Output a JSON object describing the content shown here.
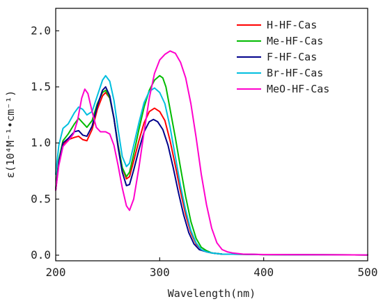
{
  "chart_data": {
    "type": "line",
    "xlabel": "Wavelength(nm)",
    "ylabel": "ε(10⁴M⁻¹•cm⁻¹)",
    "xlim": [
      200,
      500
    ],
    "ylim": [
      -0.05,
      2.2
    ],
    "x_ticks": [
      200,
      300,
      400,
      500
    ],
    "y_ticks": [
      0.0,
      0.5,
      1.0,
      1.5,
      2.0
    ],
    "x_tick_labels": [
      "200",
      "300",
      "400",
      "500"
    ],
    "y_tick_labels": [
      "0.0",
      "0.5",
      "1.0",
      "1.5",
      "2.0"
    ],
    "grid": false,
    "legend_position": "top-right",
    "series": [
      {
        "name": "H-HF-Cas",
        "color": "#ff0000",
        "points": [
          [
            200,
            0.58
          ],
          [
            203,
            0.82
          ],
          [
            207,
            0.98
          ],
          [
            212,
            1.03
          ],
          [
            218,
            1.05
          ],
          [
            222,
            1.06
          ],
          [
            226,
            1.03
          ],
          [
            230,
            1.02
          ],
          [
            235,
            1.12
          ],
          [
            240,
            1.3
          ],
          [
            245,
            1.42
          ],
          [
            248,
            1.45
          ],
          [
            252,
            1.4
          ],
          [
            256,
            1.22
          ],
          [
            260,
            0.98
          ],
          [
            264,
            0.78
          ],
          [
            268,
            0.68
          ],
          [
            271,
            0.7
          ],
          [
            275,
            0.84
          ],
          [
            280,
            1.02
          ],
          [
            285,
            1.18
          ],
          [
            290,
            1.28
          ],
          [
            295,
            1.31
          ],
          [
            300,
            1.28
          ],
          [
            305,
            1.2
          ],
          [
            310,
            1.02
          ],
          [
            315,
            0.8
          ],
          [
            320,
            0.57
          ],
          [
            325,
            0.36
          ],
          [
            330,
            0.2
          ],
          [
            335,
            0.1
          ],
          [
            340,
            0.05
          ],
          [
            345,
            0.03
          ],
          [
            350,
            0.02
          ],
          [
            360,
            0.01
          ],
          [
            380,
            0.008
          ],
          [
            400,
            0.005
          ],
          [
            500,
            0.002
          ]
        ]
      },
      {
        "name": "Me-HF-Cas",
        "color": "#00bb00",
        "points": [
          [
            200,
            0.6
          ],
          [
            203,
            0.85
          ],
          [
            207,
            1.02
          ],
          [
            212,
            1.08
          ],
          [
            218,
            1.17
          ],
          [
            222,
            1.22
          ],
          [
            226,
            1.18
          ],
          [
            230,
            1.14
          ],
          [
            235,
            1.2
          ],
          [
            240,
            1.35
          ],
          [
            245,
            1.45
          ],
          [
            248,
            1.47
          ],
          [
            252,
            1.4
          ],
          [
            256,
            1.22
          ],
          [
            260,
            0.98
          ],
          [
            264,
            0.78
          ],
          [
            268,
            0.7
          ],
          [
            271,
            0.74
          ],
          [
            275,
            0.9
          ],
          [
            280,
            1.12
          ],
          [
            285,
            1.32
          ],
          [
            290,
            1.47
          ],
          [
            295,
            1.56
          ],
          [
            300,
            1.6
          ],
          [
            303,
            1.58
          ],
          [
            306,
            1.5
          ],
          [
            310,
            1.3
          ],
          [
            315,
            1.05
          ],
          [
            320,
            0.78
          ],
          [
            325,
            0.52
          ],
          [
            330,
            0.3
          ],
          [
            335,
            0.15
          ],
          [
            340,
            0.07
          ],
          [
            345,
            0.04
          ],
          [
            350,
            0.02
          ],
          [
            360,
            0.01
          ],
          [
            380,
            0.008
          ],
          [
            400,
            0.005
          ],
          [
            500,
            0.002
          ]
        ]
      },
      {
        "name": "F-HF-Cas",
        "color": "#00008b",
        "points": [
          [
            200,
            0.58
          ],
          [
            203,
            0.83
          ],
          [
            207,
            1.0
          ],
          [
            212,
            1.04
          ],
          [
            218,
            1.1
          ],
          [
            222,
            1.11
          ],
          [
            226,
            1.07
          ],
          [
            230,
            1.06
          ],
          [
            235,
            1.15
          ],
          [
            240,
            1.33
          ],
          [
            245,
            1.47
          ],
          [
            248,
            1.5
          ],
          [
            252,
            1.42
          ],
          [
            256,
            1.22
          ],
          [
            260,
            0.96
          ],
          [
            264,
            0.74
          ],
          [
            268,
            0.62
          ],
          [
            271,
            0.63
          ],
          [
            275,
            0.76
          ],
          [
            280,
            0.94
          ],
          [
            285,
            1.1
          ],
          [
            290,
            1.19
          ],
          [
            294,
            1.21
          ],
          [
            298,
            1.19
          ],
          [
            303,
            1.12
          ],
          [
            308,
            0.98
          ],
          [
            313,
            0.78
          ],
          [
            318,
            0.56
          ],
          [
            323,
            0.36
          ],
          [
            328,
            0.2
          ],
          [
            333,
            0.1
          ],
          [
            338,
            0.05
          ],
          [
            345,
            0.03
          ],
          [
            350,
            0.02
          ],
          [
            360,
            0.01
          ],
          [
            380,
            0.008
          ],
          [
            400,
            0.005
          ],
          [
            500,
            0.002
          ]
        ]
      },
      {
        "name": "Br-HF-Cas",
        "color": "#00bfdf",
        "points": [
          [
            200,
            0.72
          ],
          [
            203,
            0.98
          ],
          [
            207,
            1.13
          ],
          [
            212,
            1.17
          ],
          [
            218,
            1.27
          ],
          [
            222,
            1.32
          ],
          [
            226,
            1.3
          ],
          [
            230,
            1.25
          ],
          [
            235,
            1.28
          ],
          [
            240,
            1.42
          ],
          [
            245,
            1.56
          ],
          [
            248,
            1.6
          ],
          [
            252,
            1.55
          ],
          [
            256,
            1.38
          ],
          [
            260,
            1.12
          ],
          [
            264,
            0.88
          ],
          [
            268,
            0.79
          ],
          [
            271,
            0.82
          ],
          [
            275,
            0.98
          ],
          [
            280,
            1.18
          ],
          [
            285,
            1.36
          ],
          [
            290,
            1.46
          ],
          [
            295,
            1.49
          ],
          [
            300,
            1.45
          ],
          [
            305,
            1.35
          ],
          [
            310,
            1.14
          ],
          [
            315,
            0.88
          ],
          [
            320,
            0.62
          ],
          [
            325,
            0.4
          ],
          [
            330,
            0.22
          ],
          [
            335,
            0.11
          ],
          [
            340,
            0.05
          ],
          [
            345,
            0.03
          ],
          [
            350,
            0.02
          ],
          [
            360,
            0.01
          ],
          [
            380,
            0.008
          ],
          [
            400,
            0.005
          ],
          [
            500,
            0.002
          ]
        ]
      },
      {
        "name": "MeO-HF-Cas",
        "color": "#ff00cc",
        "points": [
          [
            200,
            0.58
          ],
          [
            203,
            0.8
          ],
          [
            207,
            0.97
          ],
          [
            212,
            1.02
          ],
          [
            217,
            1.08
          ],
          [
            221,
            1.2
          ],
          [
            225,
            1.4
          ],
          [
            228,
            1.48
          ],
          [
            231,
            1.44
          ],
          [
            235,
            1.28
          ],
          [
            239,
            1.14
          ],
          [
            243,
            1.1
          ],
          [
            248,
            1.1
          ],
          [
            252,
            1.08
          ],
          [
            256,
            0.98
          ],
          [
            260,
            0.8
          ],
          [
            264,
            0.6
          ],
          [
            268,
            0.44
          ],
          [
            271,
            0.4
          ],
          [
            275,
            0.5
          ],
          [
            280,
            0.78
          ],
          [
            285,
            1.1
          ],
          [
            290,
            1.4
          ],
          [
            295,
            1.62
          ],
          [
            300,
            1.74
          ],
          [
            305,
            1.79
          ],
          [
            310,
            1.82
          ],
          [
            315,
            1.8
          ],
          [
            320,
            1.72
          ],
          [
            325,
            1.58
          ],
          [
            330,
            1.35
          ],
          [
            335,
            1.05
          ],
          [
            340,
            0.72
          ],
          [
            345,
            0.45
          ],
          [
            350,
            0.24
          ],
          [
            355,
            0.11
          ],
          [
            360,
            0.05
          ],
          [
            365,
            0.03
          ],
          [
            370,
            0.02
          ],
          [
            380,
            0.01
          ],
          [
            400,
            0.006
          ],
          [
            500,
            0.002
          ]
        ]
      }
    ]
  }
}
